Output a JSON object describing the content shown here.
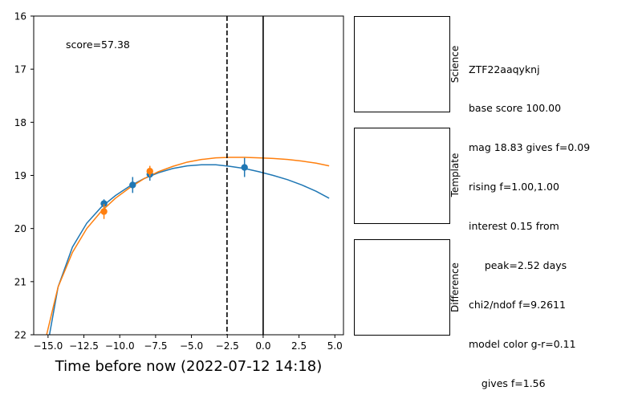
{
  "chart_data": {
    "type": "scatter",
    "xlabel": "Time before now (2022-07-12 14:18)",
    "ylabel": "",
    "xlim": [
      -16.0,
      5.6
    ],
    "ylim": [
      22,
      16
    ],
    "y_inverted": true,
    "x_ticks": [
      -15.0,
      -12.5,
      -10.0,
      -7.5,
      -5.0,
      -2.5,
      0.0,
      2.5,
      5.0
    ],
    "x_tick_labels": [
      "−15.0",
      "−12.5",
      "−10.0",
      "−7.5",
      "−5.0",
      "−2.5",
      "0.0",
      "2.5",
      "5.0"
    ],
    "y_ticks": [
      16,
      17,
      18,
      19,
      20,
      21,
      22
    ],
    "y_tick_labels": [
      "16",
      "17",
      "18",
      "19",
      "20",
      "21",
      "22"
    ],
    "annotation": "score=57.38",
    "vlines": [
      {
        "x": -2.52,
        "style": "dashed"
      },
      {
        "x": 0.0,
        "style": "solid"
      }
    ],
    "series": [
      {
        "color": "#1f77b4",
        "points": [
          {
            "x": -11.1,
            "y": 19.53,
            "err": 0.08
          },
          {
            "x": -9.1,
            "y": 19.18,
            "err": 0.15
          },
          {
            "x": -7.9,
            "y": 18.98,
            "err": 0.12
          },
          {
            "x": -1.3,
            "y": 18.85,
            "err": 0.18
          }
        ],
        "model": [
          [
            -14.9,
            22.0
          ],
          [
            -14.3,
            21.1
          ],
          [
            -13.3,
            20.35
          ],
          [
            -12.3,
            19.9
          ],
          [
            -11.3,
            19.6
          ],
          [
            -10.3,
            19.38
          ],
          [
            -9.3,
            19.2
          ],
          [
            -8.3,
            19.06
          ],
          [
            -7.3,
            18.95
          ],
          [
            -6.3,
            18.87
          ],
          [
            -5.3,
            18.82
          ],
          [
            -4.3,
            18.8
          ],
          [
            -3.3,
            18.8
          ],
          [
            -2.3,
            18.83
          ],
          [
            -1.3,
            18.87
          ],
          [
            -0.3,
            18.93
          ],
          [
            0.7,
            19.0
          ],
          [
            1.7,
            19.08
          ],
          [
            2.7,
            19.18
          ],
          [
            3.7,
            19.3
          ],
          [
            4.6,
            19.43
          ]
        ]
      },
      {
        "color": "#ff7f0e",
        "points": [
          {
            "x": -11.1,
            "y": 19.68,
            "err": 0.14
          },
          {
            "x": -7.9,
            "y": 18.92,
            "err": 0.1
          }
        ],
        "model": [
          [
            -15.1,
            22.0
          ],
          [
            -14.3,
            21.1
          ],
          [
            -13.3,
            20.45
          ],
          [
            -12.3,
            20.0
          ],
          [
            -11.3,
            19.68
          ],
          [
            -10.3,
            19.43
          ],
          [
            -9.3,
            19.23
          ],
          [
            -8.3,
            19.06
          ],
          [
            -7.3,
            18.93
          ],
          [
            -6.3,
            18.83
          ],
          [
            -5.3,
            18.75
          ],
          [
            -4.3,
            18.7
          ],
          [
            -3.3,
            18.67
          ],
          [
            -2.3,
            18.66
          ],
          [
            -1.3,
            18.66
          ],
          [
            -0.3,
            18.67
          ],
          [
            0.7,
            18.68
          ],
          [
            1.7,
            18.7
          ],
          [
            2.7,
            18.73
          ],
          [
            3.7,
            18.77
          ],
          [
            4.6,
            18.82
          ]
        ]
      }
    ]
  },
  "stamps": {
    "science_label": "Science",
    "template_label": "Template",
    "difference_label": "Difference"
  },
  "info": {
    "lines": [
      "ZTF22aaqyknj",
      "base score 100.00",
      "mag 18.83 gives f=0.09",
      "rising f=1.00,1.00",
      "interest 0.15 from",
      "     peak=2.52 days",
      "chi2/ndof f=9.2611",
      "model color g-r=0.11",
      "    gives f=1.56"
    ]
  }
}
